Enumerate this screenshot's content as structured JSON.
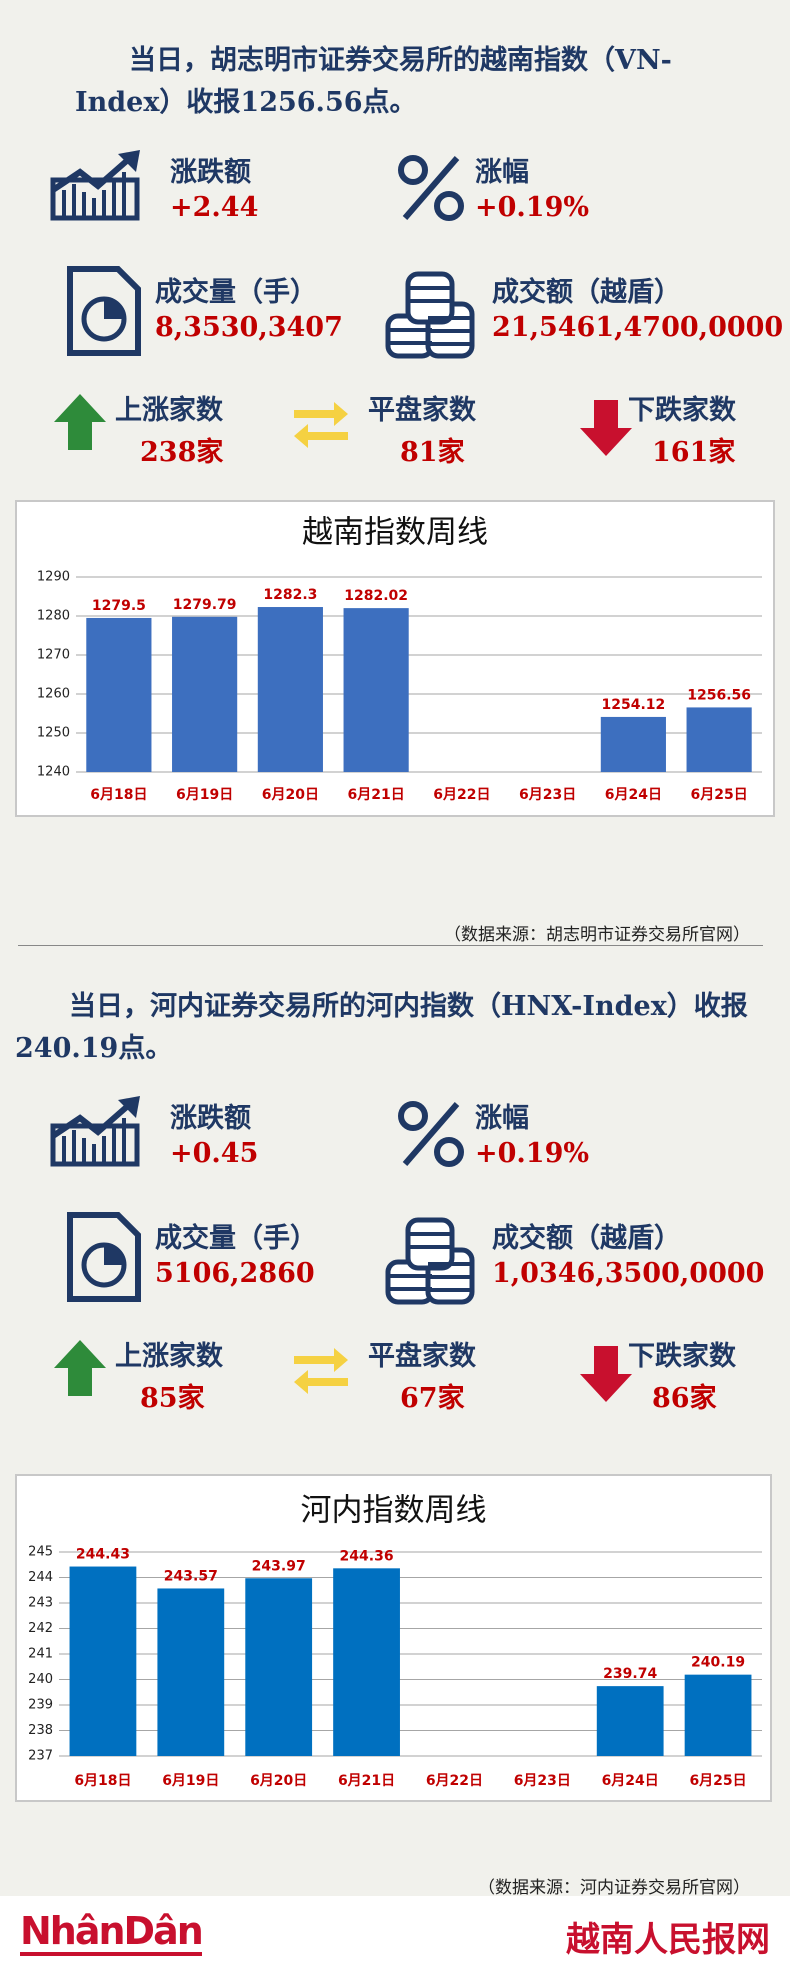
{
  "sections": [
    {
      "headline": "当日，胡志明市证券交易所的越南指数（VN-Index）收报1256.56点。",
      "stats": [
        {
          "label": "涨跌额",
          "value": "+2.44"
        },
        {
          "label": "涨幅",
          "value": "+0.19%"
        },
        {
          "label": "成交量（手）",
          "value": "8,3530,3407"
        },
        {
          "label": "成交额（越盾）",
          "value": "21,5461,4700,0000"
        },
        {
          "label": "上涨家数",
          "value": "238家"
        },
        {
          "label": "平盘家数",
          "value": "81家"
        },
        {
          "label": "下跌家数",
          "value": "161家"
        }
      ],
      "source": "（数据来源：胡志明市证券交易所官网）"
    },
    {
      "headline": "当日，河内证券交易所的河内指数（HNX-Index）收报240.19点。",
      "stats": [
        {
          "label": "涨跌额",
          "value": "+0.45"
        },
        {
          "label": "涨幅",
          "value": "+0.19%"
        },
        {
          "label": "成交量（手）",
          "value": "5106,2860"
        },
        {
          "label": "成交额（越盾）",
          "value": "1,0346,3500,0000"
        },
        {
          "label": "上涨家数",
          "value": "85家"
        },
        {
          "label": "平盘家数",
          "value": "67家"
        },
        {
          "label": "下跌家数",
          "value": "86家"
        }
      ],
      "source": "（数据来源：河内证券交易所官网）"
    }
  ],
  "chart_data": [
    {
      "type": "bar",
      "title": "越南指数周线",
      "categories": [
        "6月18日",
        "6月19日",
        "6月20日",
        "6月21日",
        "6月22日",
        "6月23日",
        "6月24日",
        "6月25日"
      ],
      "values": [
        1279.5,
        1279.79,
        1282.3,
        1282.02,
        null,
        null,
        1254.12,
        1256.56
      ],
      "color": "#3d6fbf",
      "ylim": [
        1240,
        1290
      ],
      "yticks": [
        1240,
        1250,
        1260,
        1270,
        1280,
        1290
      ],
      "grid": true
    },
    {
      "type": "bar",
      "title": "河内指数周线",
      "categories": [
        "6月18日",
        "6月19日",
        "6月20日",
        "6月21日",
        "6月22日",
        "6月23日",
        "6月24日",
        "6月25日"
      ],
      "values": [
        244.43,
        243.57,
        243.97,
        244.36,
        null,
        null,
        239.74,
        240.19
      ],
      "color": "#0070c0",
      "ylim": [
        237,
        245
      ],
      "yticks": [
        237,
        238,
        239,
        240,
        241,
        242,
        243,
        244,
        245
      ],
      "grid": true
    }
  ],
  "footer": {
    "logo": "NhânDân",
    "site": "越南人民报网"
  }
}
